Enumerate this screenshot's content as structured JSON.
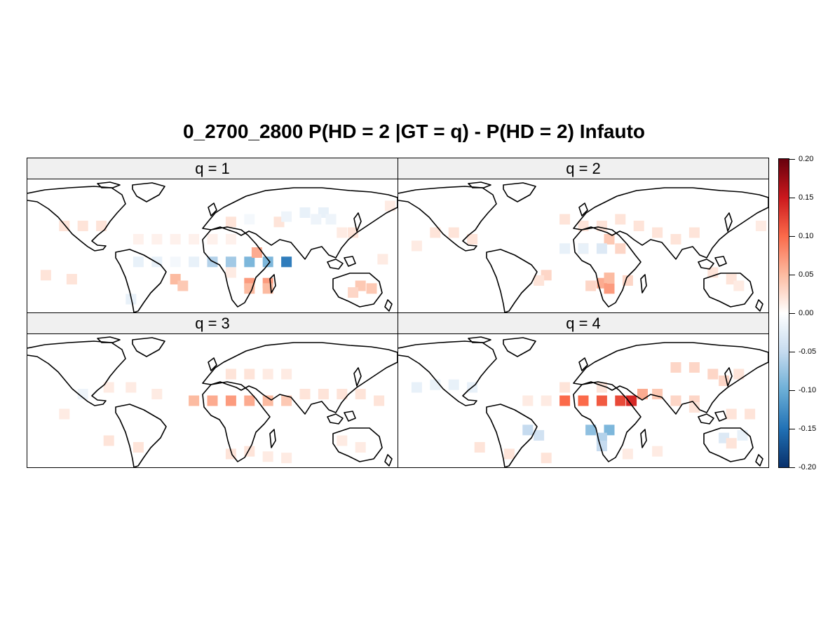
{
  "title": "0_2700_2800 P(HD = 2 |GT = q) - P(HD = 2) Infauto",
  "panels": [
    {
      "label": "q = 1",
      "cells": [
        [
          0.3,
          0.45,
          0.01
        ],
        [
          0.35,
          0.45,
          0.01
        ],
        [
          0.4,
          0.45,
          0.01
        ],
        [
          0.45,
          0.45,
          0.01
        ],
        [
          0.5,
          0.45,
          0.01
        ],
        [
          0.55,
          0.45,
          0.01
        ],
        [
          0.1,
          0.35,
          0.02
        ],
        [
          0.15,
          0.35,
          0.02
        ],
        [
          0.2,
          0.35,
          0.02
        ],
        [
          0.85,
          0.4,
          0.015
        ],
        [
          0.88,
          0.4,
          0.02
        ],
        [
          0.55,
          0.32,
          0.02
        ],
        [
          0.68,
          0.32,
          0.02
        ],
        [
          0.7,
          0.28,
          -0.015
        ],
        [
          0.75,
          0.25,
          -0.02
        ],
        [
          0.8,
          0.25,
          -0.02
        ],
        [
          0.78,
          0.3,
          -0.015
        ],
        [
          0.82,
          0.3,
          -0.015
        ],
        [
          0.6,
          0.3,
          -0.01
        ],
        [
          0.5,
          0.62,
          -0.06
        ],
        [
          0.55,
          0.62,
          -0.07
        ],
        [
          0.6,
          0.62,
          -0.09
        ],
        [
          0.65,
          0.62,
          -0.09
        ],
        [
          0.7,
          0.62,
          -0.14
        ],
        [
          0.62,
          0.55,
          0.06
        ],
        [
          0.3,
          0.62,
          -0.02
        ],
        [
          0.35,
          0.62,
          -0.02
        ],
        [
          0.4,
          0.62,
          -0.01
        ],
        [
          0.45,
          0.62,
          -0.02
        ],
        [
          0.6,
          0.78,
          0.07
        ],
        [
          0.65,
          0.78,
          0.07
        ],
        [
          0.6,
          0.82,
          0.05
        ],
        [
          0.65,
          0.82,
          0.05
        ],
        [
          0.4,
          0.75,
          0.05
        ],
        [
          0.42,
          0.8,
          0.04
        ],
        [
          0.9,
          0.8,
          0.04
        ],
        [
          0.93,
          0.82,
          0.04
        ],
        [
          0.88,
          0.85,
          0.03
        ],
        [
          0.05,
          0.72,
          0.02
        ],
        [
          0.12,
          0.75,
          0.02
        ],
        [
          0.28,
          0.9,
          -0.02
        ],
        [
          0.55,
          0.7,
          0.015
        ],
        [
          0.96,
          0.6,
          0.015
        ],
        [
          0.98,
          0.2,
          0.015
        ]
      ]
    },
    {
      "label": "q = 2",
      "cells": [
        [
          0.1,
          0.4,
          0.02
        ],
        [
          0.15,
          0.4,
          0.02
        ],
        [
          0.2,
          0.45,
          0.02
        ],
        [
          0.05,
          0.5,
          0.015
        ],
        [
          0.45,
          0.3,
          0.02
        ],
        [
          0.5,
          0.35,
          0.02
        ],
        [
          0.55,
          0.35,
          0.02
        ],
        [
          0.6,
          0.3,
          0.02
        ],
        [
          0.65,
          0.35,
          0.02
        ],
        [
          0.7,
          0.4,
          0.02
        ],
        [
          0.75,
          0.45,
          0.02
        ],
        [
          0.8,
          0.4,
          0.02
        ],
        [
          0.5,
          0.52,
          0.03
        ],
        [
          0.57,
          0.45,
          0.04
        ],
        [
          0.45,
          0.52,
          -0.02
        ],
        [
          0.5,
          0.52,
          -0.02
        ],
        [
          0.55,
          0.52,
          -0.03
        ],
        [
          0.6,
          0.52,
          0.03
        ],
        [
          0.55,
          0.78,
          0.06
        ],
        [
          0.57,
          0.82,
          0.07
        ],
        [
          0.57,
          0.74,
          0.05
        ],
        [
          0.52,
          0.8,
          0.03
        ],
        [
          0.62,
          0.76,
          0.03
        ],
        [
          0.4,
          0.72,
          0.03
        ],
        [
          0.38,
          0.76,
          0.02
        ],
        [
          0.85,
          0.7,
          0.02
        ],
        [
          0.9,
          0.75,
          0.02
        ],
        [
          0.92,
          0.8,
          0.015
        ],
        [
          0.98,
          0.35,
          0.015
        ]
      ]
    },
    {
      "label": "q = 3",
      "cells": [
        [
          0.45,
          0.5,
          0.05
        ],
        [
          0.5,
          0.5,
          0.06
        ],
        [
          0.55,
          0.5,
          0.07
        ],
        [
          0.6,
          0.5,
          0.06
        ],
        [
          0.65,
          0.5,
          0.05
        ],
        [
          0.7,
          0.5,
          0.04
        ],
        [
          0.75,
          0.45,
          0.02
        ],
        [
          0.8,
          0.45,
          0.02
        ],
        [
          0.85,
          0.45,
          0.02
        ],
        [
          0.9,
          0.45,
          0.02
        ],
        [
          0.95,
          0.5,
          0.02
        ],
        [
          0.55,
          0.3,
          0.02
        ],
        [
          0.6,
          0.3,
          0.02
        ],
        [
          0.65,
          0.3,
          0.015
        ],
        [
          0.7,
          0.3,
          0.015
        ],
        [
          0.22,
          0.4,
          0.015
        ],
        [
          0.28,
          0.4,
          0.015
        ],
        [
          0.35,
          0.45,
          0.015
        ],
        [
          0.15,
          0.45,
          -0.015
        ],
        [
          0.22,
          0.8,
          0.02
        ],
        [
          0.3,
          0.85,
          0.02
        ],
        [
          0.55,
          0.9,
          0.02
        ],
        [
          0.6,
          0.88,
          0.02
        ],
        [
          0.65,
          0.92,
          0.015
        ],
        [
          0.7,
          0.93,
          0.015
        ],
        [
          0.85,
          0.8,
          0.015
        ],
        [
          0.9,
          0.85,
          0.015
        ],
        [
          0.1,
          0.6,
          0.015
        ]
      ]
    },
    {
      "label": "q = 4",
      "cells": [
        [
          0.45,
          0.5,
          0.1
        ],
        [
          0.5,
          0.5,
          0.1
        ],
        [
          0.55,
          0.5,
          0.11
        ],
        [
          0.6,
          0.5,
          0.12
        ],
        [
          0.63,
          0.5,
          0.14
        ],
        [
          0.66,
          0.45,
          0.06
        ],
        [
          0.7,
          0.45,
          0.04
        ],
        [
          0.75,
          0.5,
          0.03
        ],
        [
          0.8,
          0.5,
          0.03
        ],
        [
          0.52,
          0.72,
          -0.08
        ],
        [
          0.57,
          0.72,
          -0.09
        ],
        [
          0.55,
          0.78,
          -0.06
        ],
        [
          0.55,
          0.84,
          -0.05
        ],
        [
          0.35,
          0.72,
          -0.05
        ],
        [
          0.38,
          0.76,
          -0.04
        ],
        [
          0.05,
          0.4,
          -0.02
        ],
        [
          0.1,
          0.38,
          -0.02
        ],
        [
          0.15,
          0.38,
          -0.02
        ],
        [
          0.2,
          0.4,
          -0.02
        ],
        [
          0.75,
          0.25,
          0.03
        ],
        [
          0.8,
          0.25,
          0.03
        ],
        [
          0.85,
          0.3,
          0.03
        ],
        [
          0.88,
          0.35,
          0.03
        ],
        [
          0.92,
          0.3,
          0.02
        ],
        [
          0.8,
          0.55,
          0.02
        ],
        [
          0.9,
          0.6,
          0.02
        ],
        [
          0.95,
          0.6,
          0.02
        ],
        [
          0.88,
          0.78,
          -0.03
        ],
        [
          0.93,
          0.76,
          -0.02
        ],
        [
          0.9,
          0.82,
          0.02
        ],
        [
          0.35,
          0.5,
          0.015
        ],
        [
          0.4,
          0.5,
          0.015
        ],
        [
          0.45,
          0.4,
          0.02
        ],
        [
          0.55,
          0.4,
          0.02
        ],
        [
          0.22,
          0.85,
          0.02
        ],
        [
          0.3,
          0.9,
          0.02
        ],
        [
          0.4,
          0.93,
          0.02
        ],
        [
          0.62,
          0.9,
          0.015
        ],
        [
          0.7,
          0.88,
          0.015
        ]
      ]
    }
  ],
  "colorbar": {
    "ticks": [
      "0.20",
      "0.15",
      "0.10",
      "0.05",
      "0.00",
      "-0.05",
      "-0.10",
      "-0.15",
      "-0.20"
    ],
    "min": -0.2,
    "max": 0.2,
    "stops": [
      "#08306b",
      "#2171b5",
      "#6baed6",
      "#c6dbef",
      "#ffffff",
      "#fcbba1",
      "#fb6a4a",
      "#cb181d",
      "#67000d"
    ]
  }
}
